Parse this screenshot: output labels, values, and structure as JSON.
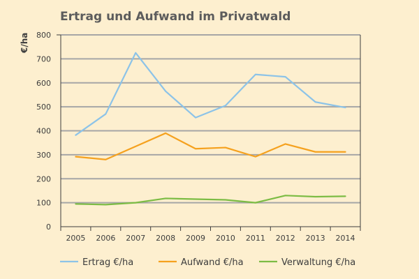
{
  "chart_data": {
    "type": "line",
    "title": "Ertrag und Aufwand im Privatwald",
    "ylabel": "€/ha",
    "xlabel": "",
    "ylim": [
      0,
      800
    ],
    "y_ticks": [
      0,
      100,
      200,
      300,
      400,
      500,
      600,
      700,
      800
    ],
    "categories": [
      "2005",
      "2006",
      "2007",
      "2008",
      "2009",
      "2010",
      "2011",
      "2012",
      "2013",
      "2014"
    ],
    "grid": true,
    "legend_position": "bottom",
    "series": [
      {
        "name": "Ertrag €/ha",
        "color": "#8cc3e8",
        "values": [
          382,
          470,
          725,
          565,
          455,
          505,
          635,
          625,
          520,
          497
        ]
      },
      {
        "name": "Aufwand €/ha",
        "color": "#f5a11e",
        "values": [
          292,
          280,
          335,
          390,
          325,
          330,
          292,
          345,
          312,
          312
        ]
      },
      {
        "name": "Verwaltung €/ha",
        "color": "#7cbc44",
        "values": [
          95,
          92,
          100,
          118,
          115,
          112,
          100,
          130,
          125,
          127
        ]
      }
    ]
  }
}
